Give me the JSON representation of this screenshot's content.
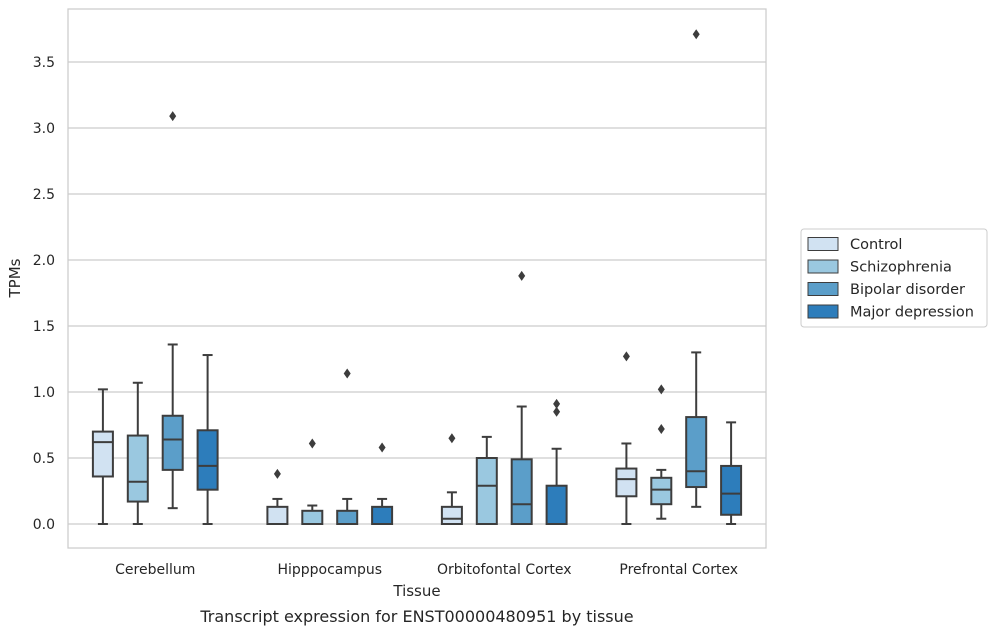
{
  "chart_data": {
    "type": "box",
    "xlabel": "Tissue",
    "ylabel": "TPMs",
    "caption": "Transcript expression for ENST00000480951 by tissue",
    "ylim": [
      -0.18,
      3.9
    ],
    "yticks": [
      "0.0",
      "0.5",
      "1.0",
      "1.5",
      "2.0",
      "2.5",
      "3.0",
      "3.5"
    ],
    "grid": "horizontal",
    "legend_position": "right",
    "categories": [
      "Cerebellum",
      "Hipppocampus",
      "Orbitofontal Cortex",
      "Prefrontal Cortex"
    ],
    "series": [
      {
        "name": "Control",
        "color": "#d1e2f2",
        "boxes": [
          {
            "whislo": 0.0,
            "q1": 0.36,
            "med": 0.62,
            "q3": 0.7,
            "whishi": 1.02,
            "fliers": []
          },
          {
            "whislo": 0.0,
            "q1": 0.0,
            "med": 0.0,
            "q3": 0.13,
            "whishi": 0.19,
            "fliers": [
              0.38
            ]
          },
          {
            "whislo": 0.0,
            "q1": 0.0,
            "med": 0.04,
            "q3": 0.13,
            "whishi": 0.24,
            "fliers": [
              0.65
            ]
          },
          {
            "whislo": 0.0,
            "q1": 0.21,
            "med": 0.34,
            "q3": 0.42,
            "whishi": 0.61,
            "fliers": [
              1.27
            ]
          }
        ]
      },
      {
        "name": "Schizophrenia",
        "color": "#9ac8e0",
        "boxes": [
          {
            "whislo": 0.0,
            "q1": 0.17,
            "med": 0.32,
            "q3": 0.67,
            "whishi": 1.07,
            "fliers": []
          },
          {
            "whislo": 0.0,
            "q1": 0.0,
            "med": 0.0,
            "q3": 0.1,
            "whishi": 0.14,
            "fliers": [
              0.61
            ]
          },
          {
            "whislo": 0.0,
            "q1": 0.0,
            "med": 0.29,
            "q3": 0.5,
            "whishi": 0.66,
            "fliers": []
          },
          {
            "whislo": 0.04,
            "q1": 0.15,
            "med": 0.26,
            "q3": 0.35,
            "whishi": 0.41,
            "fliers": [
              0.72,
              1.02
            ]
          }
        ]
      },
      {
        "name": "Bipolar disorder",
        "color": "#5b9ec9",
        "boxes": [
          {
            "whislo": 0.12,
            "q1": 0.41,
            "med": 0.64,
            "q3": 0.82,
            "whishi": 1.36,
            "fliers": [
              3.09
            ]
          },
          {
            "whislo": 0.0,
            "q1": 0.0,
            "med": 0.0,
            "q3": 0.1,
            "whishi": 0.19,
            "fliers": [
              1.14
            ]
          },
          {
            "whislo": 0.0,
            "q1": 0.0,
            "med": 0.15,
            "q3": 0.49,
            "whishi": 0.89,
            "fliers": [
              1.88
            ]
          },
          {
            "whislo": 0.13,
            "q1": 0.28,
            "med": 0.4,
            "q3": 0.81,
            "whishi": 1.3,
            "fliers": [
              3.71
            ]
          }
        ]
      },
      {
        "name": "Major depression",
        "color": "#2d7dbb",
        "boxes": [
          {
            "whislo": 0.0,
            "q1": 0.26,
            "med": 0.44,
            "q3": 0.71,
            "whishi": 1.28,
            "fliers": []
          },
          {
            "whislo": 0.0,
            "q1": 0.0,
            "med": 0.0,
            "q3": 0.13,
            "whishi": 0.19,
            "fliers": [
              0.58
            ]
          },
          {
            "whislo": 0.0,
            "q1": 0.0,
            "med": 0.0,
            "q3": 0.29,
            "whishi": 0.57,
            "fliers": [
              0.85,
              0.91
            ]
          },
          {
            "whislo": 0.0,
            "q1": 0.07,
            "med": 0.23,
            "q3": 0.44,
            "whishi": 0.77,
            "fliers": []
          }
        ]
      }
    ]
  }
}
